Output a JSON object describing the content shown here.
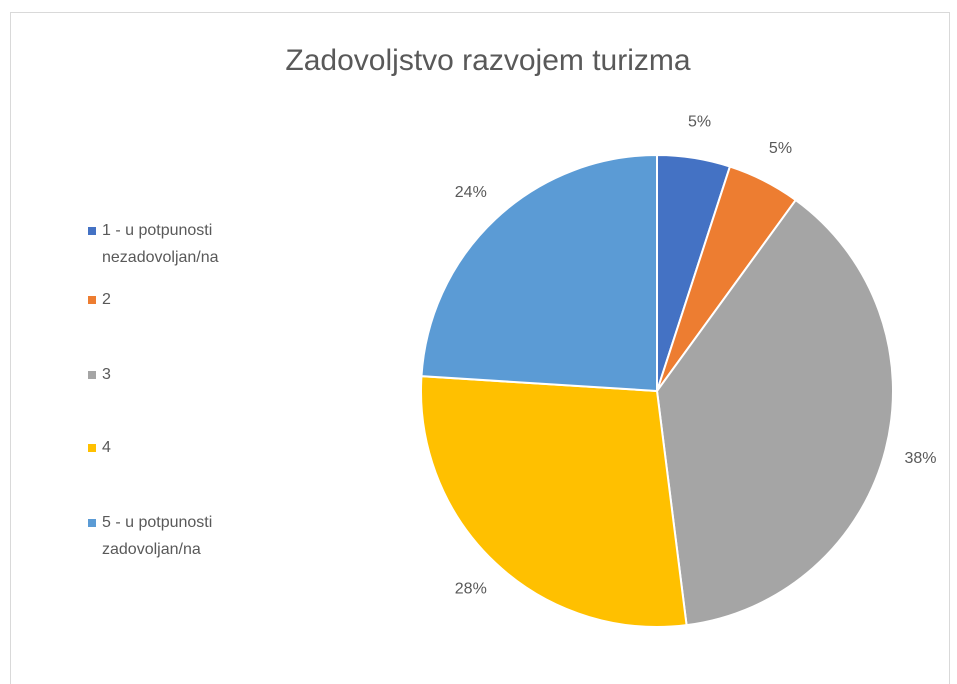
{
  "chart_data": {
    "type": "pie",
    "title": "Zadovoljstvo razvojem turizma",
    "categories": [
      "1 - u potpunosti nezadovoljan/na",
      "2",
      "3",
      "4",
      "5 - u potpunosti zadovoljan/na"
    ],
    "values": [
      5,
      5,
      38,
      28,
      24
    ],
    "value_labels": [
      "5%",
      "5%",
      "38%",
      "28%",
      "24%"
    ],
    "colors": [
      "#4472c4",
      "#ed7d31",
      "#a5a5a5",
      "#ffc000",
      "#5b9bd5"
    ],
    "legend": "left"
  }
}
